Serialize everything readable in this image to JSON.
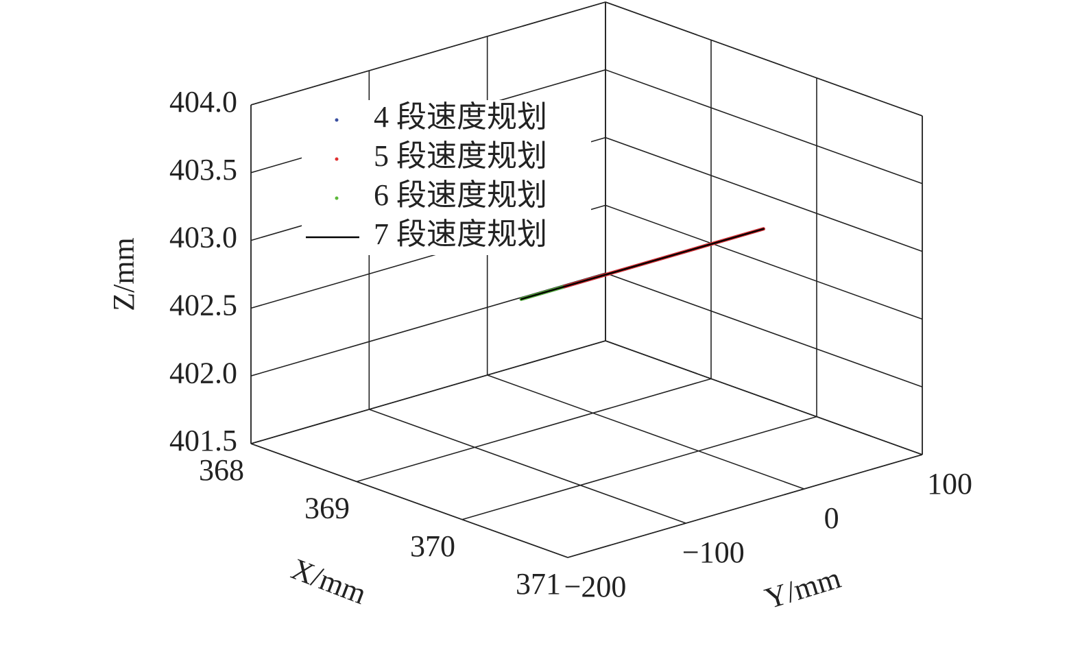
{
  "chart_data": {
    "type": "line3d",
    "xlabel": "X/mm",
    "ylabel": "Y/mm",
    "zlabel": "Z/mm",
    "xlim": [
      368,
      371
    ],
    "ylim": [
      -200,
      100
    ],
    "zlim": [
      401.5,
      404
    ],
    "xticks": [
      368,
      369,
      370,
      371
    ],
    "yticks": [
      {
        "value": -200,
        "label": "−200"
      },
      {
        "value": -100,
        "label": "−100"
      },
      0,
      100
    ],
    "zticks": [
      401.5,
      {
        "value": 402,
        "label": "402.0"
      },
      402.5,
      {
        "value": 403,
        "label": "403.0"
      },
      403.5,
      {
        "value": 404,
        "label": "404.0"
      }
    ],
    "grid": true,
    "legend": "upper left",
    "series": [
      {
        "name": "4 段速度规划",
        "color": "#3a4fa0",
        "marker": "dot",
        "x": [
          370,
          370
        ],
        "y": [
          -150,
          55
        ],
        "z": [
          403,
          403
        ]
      },
      {
        "name": "5 段速度规划",
        "color": "#e03030",
        "marker": "dot",
        "x": [
          370,
          370
        ],
        "y": [
          -115,
          55
        ],
        "z": [
          403,
          403
        ]
      },
      {
        "name": "6 段速度规划",
        "color": "#5cb83a",
        "marker": "dot",
        "x": [
          370,
          370
        ],
        "y": [
          -150,
          -115
        ],
        "z": [
          403,
          403
        ]
      },
      {
        "name": "7 段速度规划",
        "color": "#000000",
        "marker": "line",
        "x": [
          370,
          370
        ],
        "y": [
          -150,
          55
        ],
        "z": [
          403,
          403
        ]
      }
    ]
  }
}
